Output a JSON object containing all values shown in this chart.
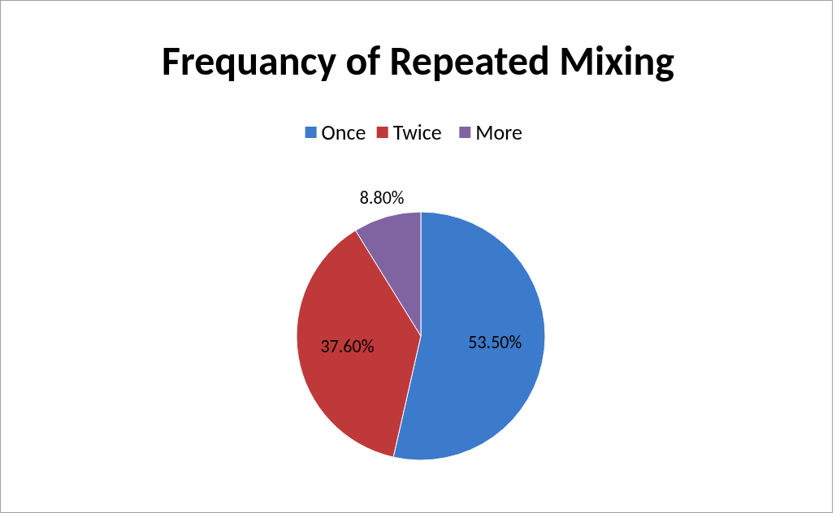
{
  "chart_data": {
    "type": "pie",
    "title": "Frequancy of Repeated Mixing",
    "categories": [
      "Once",
      "Twice",
      "More"
    ],
    "values": [
      53.5,
      37.6,
      8.8
    ],
    "colors": [
      "#3c7acb",
      "#c0393a",
      "#8064a2"
    ],
    "value_labels": [
      "53.50%",
      "37.60%",
      "8.80%"
    ],
    "legend": "top"
  }
}
